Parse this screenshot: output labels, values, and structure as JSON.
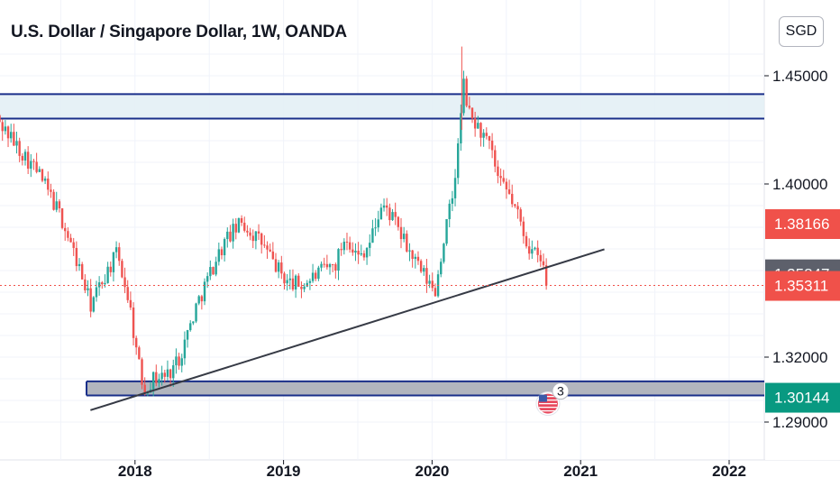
{
  "header": {
    "title": "U.S. Dollar / Singapore Dollar, 1W, OANDA",
    "currency_button": "SGD"
  },
  "chart_data": {
    "type": "candlestick",
    "symbol": "USDSGD",
    "interval": "1W",
    "source": "OANDA",
    "y_ticks": [
      "1.45000",
      "1.40000",
      "1.32000",
      "1.29000"
    ],
    "x_ticks": [
      {
        "label": "2018",
        "t": 2018.0
      },
      {
        "label": "2019",
        "t": 2019.0
      },
      {
        "label": "2020",
        "t": 2020.0
      },
      {
        "label": "2021",
        "t": 2021.0
      },
      {
        "label": "2022",
        "t": 2022.0
      }
    ],
    "price_tags": [
      {
        "label": "1.38166",
        "value": 1.38166,
        "color": "#f0514a"
      },
      {
        "label": "1.35847",
        "value": 1.35847,
        "color": "#5d606b"
      },
      {
        "label": "1.35311",
        "value": 1.35311,
        "color": "#f0514a"
      },
      {
        "label": "1.30144",
        "value": 1.30144,
        "color": "#089981"
      }
    ],
    "current_price": 1.35311,
    "zones": [
      {
        "name": "resistance",
        "from": 1.4302,
        "to": 1.4415,
        "fill": "#e3eff5",
        "border": "#1a2f8a"
      },
      {
        "name": "support",
        "from": 1.3023,
        "to": 1.3088,
        "fill": "#b2b5be",
        "border": "#1a2f8a"
      }
    ],
    "trendline": {
      "t1": 2017.7,
      "v1": 1.2955,
      "t2": 2021.16,
      "v2": 1.3698
    },
    "event_marker": {
      "count": "3",
      "t": 2020.78
    },
    "x_range": [
      2017.05,
      2022.1
    ],
    "y_range": [
      1.2825,
      1.4705
    ],
    "anchors": [
      [
        2017.05,
        1.432
      ],
      [
        2017.2,
        1.418
      ],
      [
        2017.35,
        1.405
      ],
      [
        2017.5,
        1.385
      ],
      [
        2017.62,
        1.362
      ],
      [
        2017.7,
        1.344
      ],
      [
        2017.8,
        1.358
      ],
      [
        2017.88,
        1.368
      ],
      [
        2017.96,
        1.346
      ],
      [
        2018.02,
        1.318
      ],
      [
        2018.06,
        1.305
      ],
      [
        2018.12,
        1.31
      ],
      [
        2018.22,
        1.312
      ],
      [
        2018.3,
        1.32
      ],
      [
        2018.42,
        1.345
      ],
      [
        2018.55,
        1.366
      ],
      [
        2018.62,
        1.375
      ],
      [
        2018.72,
        1.382
      ],
      [
        2018.85,
        1.373
      ],
      [
        2018.92,
        1.365
      ],
      [
        2019.02,
        1.355
      ],
      [
        2019.12,
        1.353
      ],
      [
        2019.22,
        1.358
      ],
      [
        2019.35,
        1.363
      ],
      [
        2019.42,
        1.377
      ],
      [
        2019.5,
        1.366
      ],
      [
        2019.58,
        1.373
      ],
      [
        2019.66,
        1.39
      ],
      [
        2019.72,
        1.386
      ],
      [
        2019.82,
        1.372
      ],
      [
        2019.92,
        1.36
      ],
      [
        2020.02,
        1.35
      ],
      [
        2020.08,
        1.375
      ],
      [
        2020.14,
        1.395
      ],
      [
        2020.18,
        1.42
      ],
      [
        2020.21,
        1.447
      ],
      [
        2020.25,
        1.432
      ],
      [
        2020.32,
        1.425
      ],
      [
        2020.4,
        1.415
      ],
      [
        2020.45,
        1.4
      ],
      [
        2020.52,
        1.395
      ],
      [
        2020.58,
        1.385
      ],
      [
        2020.65,
        1.371
      ],
      [
        2020.72,
        1.365
      ],
      [
        2020.78,
        1.3584
      ]
    ],
    "candle_step": 0.01917,
    "seed": 42
  }
}
